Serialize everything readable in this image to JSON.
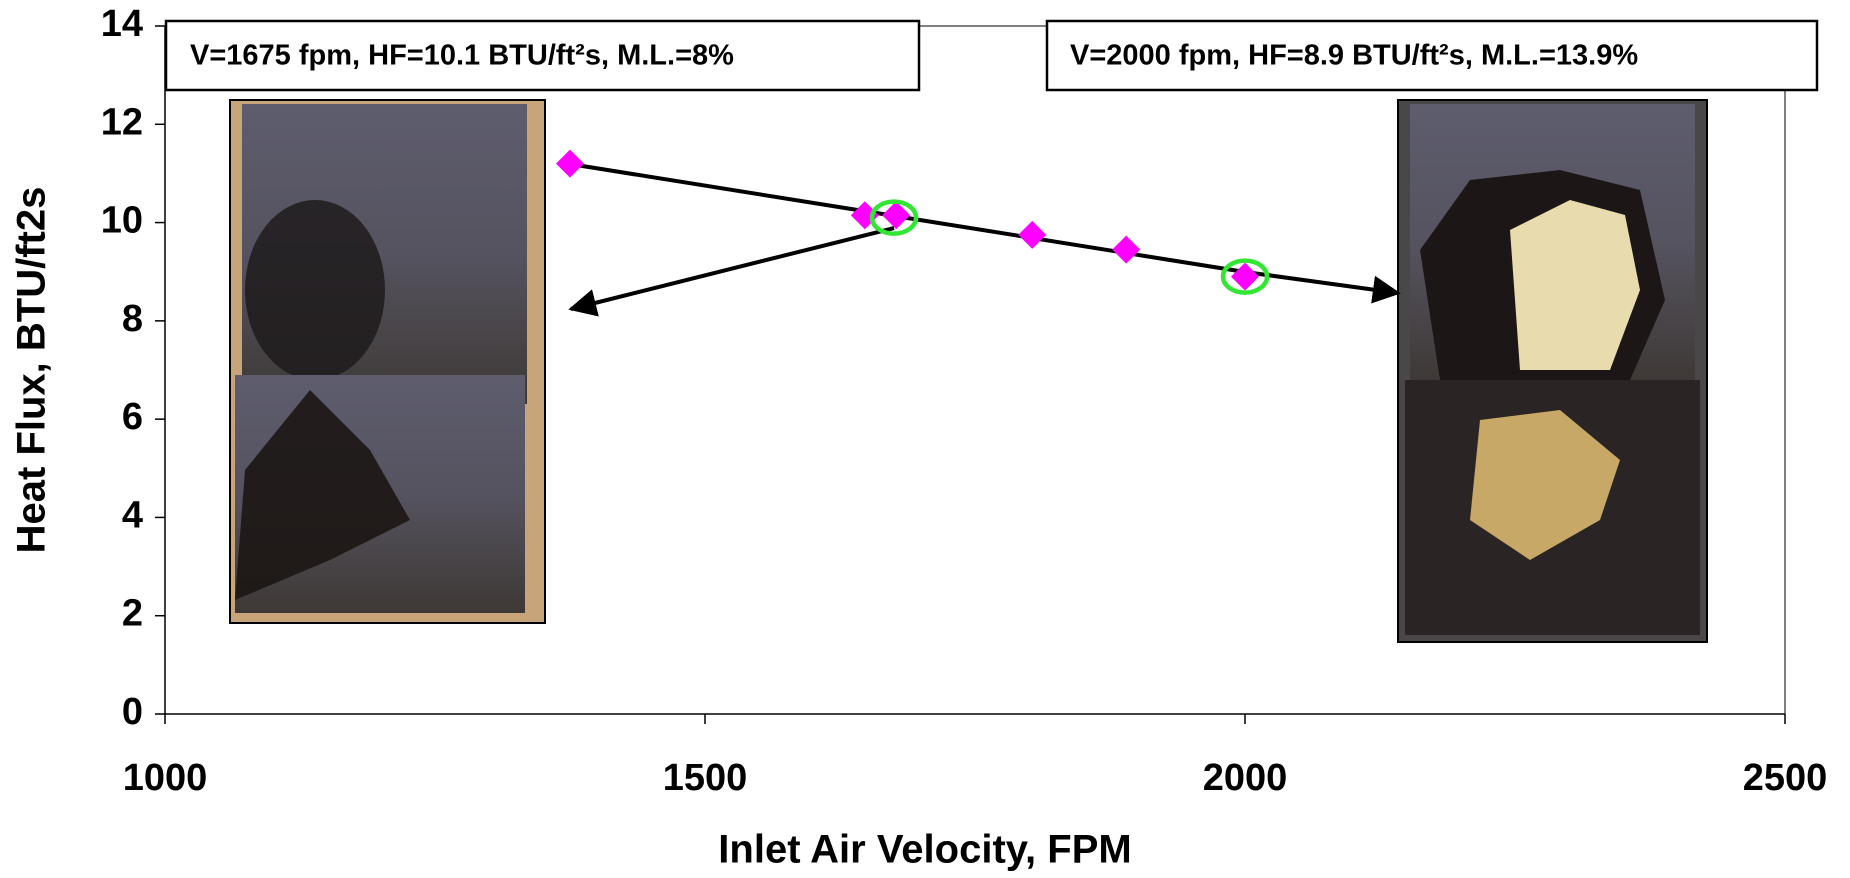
{
  "chart_data": {
    "type": "scatter",
    "x_label": "Inlet Air Velocity, FPM",
    "y_label": "Heat Flux, BTU/ft2s",
    "xlim": [
      1000,
      2500
    ],
    "xticks": [
      1000,
      1500,
      2000,
      2500
    ],
    "ylim": [
      0,
      14
    ],
    "yticks": [
      0,
      2,
      4,
      6,
      8,
      10,
      12,
      14
    ],
    "series": [
      {
        "color": "#ff00ff",
        "marker": "diamond",
        "x": [
          1375,
          1648,
          1677,
          1803,
          1890,
          2000
        ],
        "values": [
          11.2,
          10.15,
          10.15,
          9.75,
          9.45,
          8.9
        ]
      },
      {
        "color": "#33e633",
        "marker": "circle",
        "x": [
          1675,
          2000
        ],
        "values": [
          10.1,
          8.9
        ]
      }
    ],
    "annotations": [
      "V=1675 fpm, HF=10.1 BTU/ft²s, M.L.=8%",
      "V=2000 fpm, HF=8.9 BTU/ft²s, M.L.=13.9%"
    ]
  }
}
